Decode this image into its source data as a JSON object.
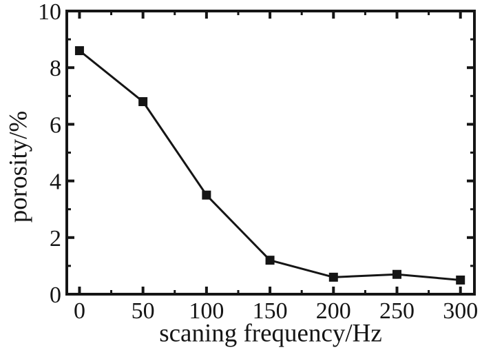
{
  "figure": {
    "background": "#ffffff",
    "ink_color": "#151515"
  },
  "chart_data": {
    "type": "line",
    "title": "",
    "xlabel": "scaning frequency/Hz",
    "ylabel": "porosity/%",
    "series": [
      {
        "name": "porosity",
        "x": [
          0,
          50,
          100,
          150,
          200,
          250,
          300
        ],
        "y": [
          8.6,
          6.8,
          3.5,
          1.2,
          0.6,
          0.7,
          0.5
        ],
        "marker": "square",
        "line_color": "#151515",
        "marker_color": "#151515"
      }
    ],
    "xlim": [
      -10,
      311
    ],
    "ylim": [
      0,
      10
    ],
    "xticks_major": [
      0,
      50,
      100,
      150,
      200,
      250,
      300
    ],
    "xtick_labels": [
      "0",
      "50",
      "100",
      "150",
      "200",
      "250",
      "300"
    ],
    "xticks_minor": [
      25,
      75,
      125,
      175,
      225,
      275
    ],
    "yticks_major": [
      0,
      2,
      4,
      6,
      8,
      10
    ],
    "ytick_labels": [
      "0",
      "2",
      "4",
      "6",
      "8",
      "10"
    ],
    "yticks_minor": [
      1,
      3,
      5,
      7,
      9
    ],
    "grid": false,
    "legend": null,
    "frame": "box-with-mirrored-ticks"
  }
}
